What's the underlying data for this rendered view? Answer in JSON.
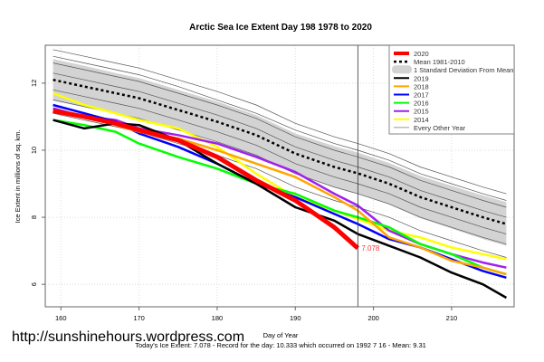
{
  "chart_data": {
    "type": "line",
    "title": "Arctic Sea Ice Extent Day 198 1978 to 2020",
    "xlabel": "Day of Year",
    "ylabel": "Ice Extent in millions of sq. km.",
    "subtitle": "Today's Ice Extent: 7.078  - Record for the day: 10.333 which occurred on 1992 7 16  - Mean: 9.31",
    "watermark": "http://sunshinehours.wordpress.com",
    "xlim": [
      158,
      218
    ],
    "ylim": [
      5.33,
      13.13
    ],
    "xticks": [
      160,
      170,
      180,
      190,
      200,
      210
    ],
    "yticks": [
      6,
      8,
      10,
      12
    ],
    "grid": true,
    "legend_position": "top-right",
    "current_day": 198,
    "end_label": "7.078",
    "x": [
      159,
      163,
      167,
      170,
      175,
      180,
      185,
      190,
      195,
      198,
      202,
      206,
      210,
      214,
      217
    ],
    "mean": {
      "name": "Mean 1981-2010",
      "color": "#000000",
      "values": [
        12.1,
        11.9,
        11.7,
        11.55,
        11.2,
        10.85,
        10.45,
        9.9,
        9.5,
        9.31,
        9.0,
        8.6,
        8.3,
        8.0,
        7.8
      ]
    },
    "std_band": {
      "name": "1 Standard Deviation From Mean",
      "color": "#d3d3d3",
      "values": [
        0.62,
        0.62,
        0.6,
        0.6,
        0.6,
        0.6,
        0.6,
        0.6,
        0.62,
        0.62,
        0.62,
        0.63,
        0.64,
        0.65,
        0.65
      ]
    },
    "series": [
      {
        "name": "2020",
        "color": "#ff0000",
        "values": [
          11.17,
          11.0,
          10.8,
          10.6,
          10.3,
          9.8,
          9.1,
          8.5,
          7.7,
          7.078,
          null,
          null,
          null,
          null,
          null
        ]
      },
      {
        "name": "2019",
        "color": "#000000",
        "values": [
          10.9,
          10.65,
          10.8,
          10.75,
          10.3,
          9.6,
          9.0,
          8.3,
          7.9,
          7.5,
          7.15,
          6.8,
          6.35,
          6.0,
          5.6
        ]
      },
      {
        "name": "2018",
        "color": "#ffa500",
        "values": [
          11.15,
          11.0,
          10.75,
          10.55,
          10.35,
          10.0,
          9.6,
          9.2,
          8.6,
          8.2,
          7.4,
          7.1,
          6.7,
          6.5,
          6.3
        ]
      },
      {
        "name": "2017",
        "color": "#0000ff",
        "values": [
          11.35,
          11.1,
          10.85,
          10.5,
          10.1,
          9.6,
          9.0,
          8.6,
          8.1,
          7.8,
          7.35,
          7.1,
          6.75,
          6.4,
          6.2
        ]
      },
      {
        "name": "2016",
        "color": "#00ff00",
        "values": [
          10.9,
          10.75,
          10.55,
          10.2,
          9.8,
          9.45,
          9.0,
          8.7,
          8.2,
          8.0,
          7.7,
          7.2,
          6.9,
          6.5,
          6.3
        ]
      },
      {
        "name": "2015",
        "color": "#a020f0",
        "values": [
          11.25,
          11.0,
          10.9,
          10.65,
          10.45,
          10.2,
          9.8,
          9.35,
          8.7,
          8.35,
          7.6,
          7.2,
          6.9,
          6.65,
          6.5
        ]
      },
      {
        "name": "2014",
        "color": "#ffff00",
        "values": [
          11.7,
          11.35,
          11.1,
          10.9,
          10.65,
          10.1,
          9.3,
          8.6,
          8.2,
          7.95,
          7.6,
          7.4,
          7.1,
          6.9,
          6.75
        ]
      }
    ],
    "other_years": {
      "name": "Every Other Year",
      "color": "#555555",
      "lines": [
        [
          13.0,
          12.8,
          12.6,
          12.45,
          12.1,
          11.75,
          11.35,
          10.8,
          10.4,
          10.2,
          9.9,
          9.5,
          9.2,
          8.9,
          8.7
        ],
        [
          12.8,
          12.6,
          12.4,
          12.25,
          11.9,
          11.5,
          11.1,
          10.6,
          10.2,
          10.0,
          9.7,
          9.3,
          9.0,
          8.7,
          8.5
        ],
        [
          12.6,
          12.4,
          12.2,
          12.05,
          11.7,
          11.35,
          10.95,
          10.4,
          10.0,
          9.8,
          9.5,
          9.1,
          8.8,
          8.5,
          8.3
        ],
        [
          12.3,
          12.1,
          11.9,
          11.75,
          11.4,
          11.05,
          10.65,
          10.1,
          9.7,
          9.5,
          9.2,
          8.8,
          8.5,
          8.2,
          8.0
        ],
        [
          11.8,
          11.6,
          11.4,
          11.25,
          10.9,
          10.55,
          10.15,
          9.6,
          9.2,
          9.0,
          8.7,
          8.3,
          8.0,
          7.7,
          7.5
        ],
        [
          11.5,
          11.3,
          11.1,
          10.95,
          10.6,
          10.25,
          9.85,
          9.3,
          8.9,
          8.7,
          8.4,
          8.0,
          7.7,
          7.4,
          7.2
        ],
        [
          11.1,
          10.9,
          10.7,
          10.55,
          10.2,
          9.85,
          9.45,
          8.9,
          8.5,
          8.3,
          8.0,
          7.6,
          7.3,
          7.0,
          6.8
        ]
      ]
    }
  }
}
